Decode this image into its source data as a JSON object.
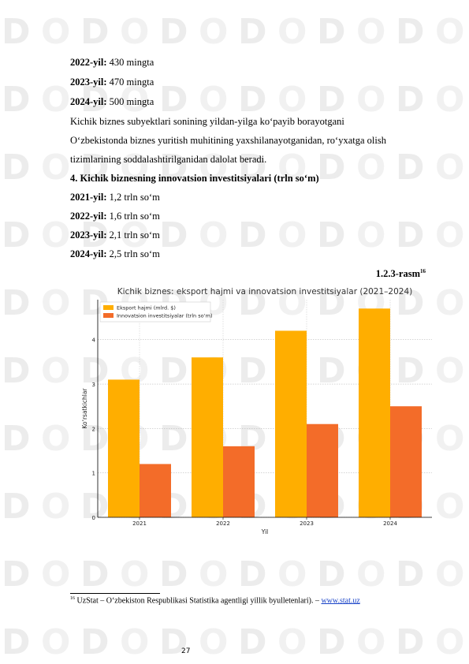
{
  "list1": [
    {
      "year": "2022-yil:",
      "value": "430 mingta"
    },
    {
      "year": "2023-yil:",
      "value": "470 mingta"
    },
    {
      "year": "2024-yil:",
      "value": "500 mingta"
    }
  ],
  "paragraph": [
    " Kichik biznes subyektlari sonining yildan-yilga ko‘payib borayotgani",
    "O‘zbekistonda biznes yuritish muhitining yaxshilanayotganidan, ro‘yxatga olish",
    "tizimlarining soddalashtirilganidan dalolat beradi."
  ],
  "heading": "4. Kichik biznesning innovatsion investitsiyalari (trln so‘m)",
  "list2": [
    {
      "year": "2021-yil:",
      "value": "1,2 trln so‘m"
    },
    {
      "year": "2022-yil:",
      "value": "1,6 trln so‘m"
    },
    {
      "year": "2023-yil:",
      "value": "2,1 trln so‘m"
    },
    {
      "year": "2024-yil:",
      "value": "2,5 trln so‘m"
    }
  ],
  "figure_label": "1.2.3-rasm",
  "figure_footnote_ref": "16",
  "chart_data": {
    "type": "bar",
    "title": "Kichik biznes: eksport hajmi va innovatsion investitsiyalar (2021–2024)",
    "xlabel": "Yil",
    "ylabel": "Ko‘rsatkichlar",
    "categories": [
      "2021",
      "2022",
      "2023",
      "2024"
    ],
    "series": [
      {
        "name": "Eksport hajmi (mlrd. $)",
        "values": [
          3.1,
          3.6,
          4.2,
          4.7
        ],
        "color": "#ffae00"
      },
      {
        "name": "Innovatsion investitsiyalar (trln so‘m)",
        "values": [
          1.2,
          1.6,
          2.1,
          2.5
        ],
        "color": "#f36c29"
      }
    ],
    "ylim": [
      0,
      4.9
    ],
    "yticks": [
      "0",
      "1",
      "2",
      "3",
      "4"
    ],
    "grid": true,
    "legend": "top-left"
  },
  "footnote": {
    "number": "16",
    "text": "UzStat – O‘zbekiston Respublikasi Statistika agentligi yillik byulletenlari). – ",
    "link": "www.stat.uz"
  },
  "page_number": "27"
}
